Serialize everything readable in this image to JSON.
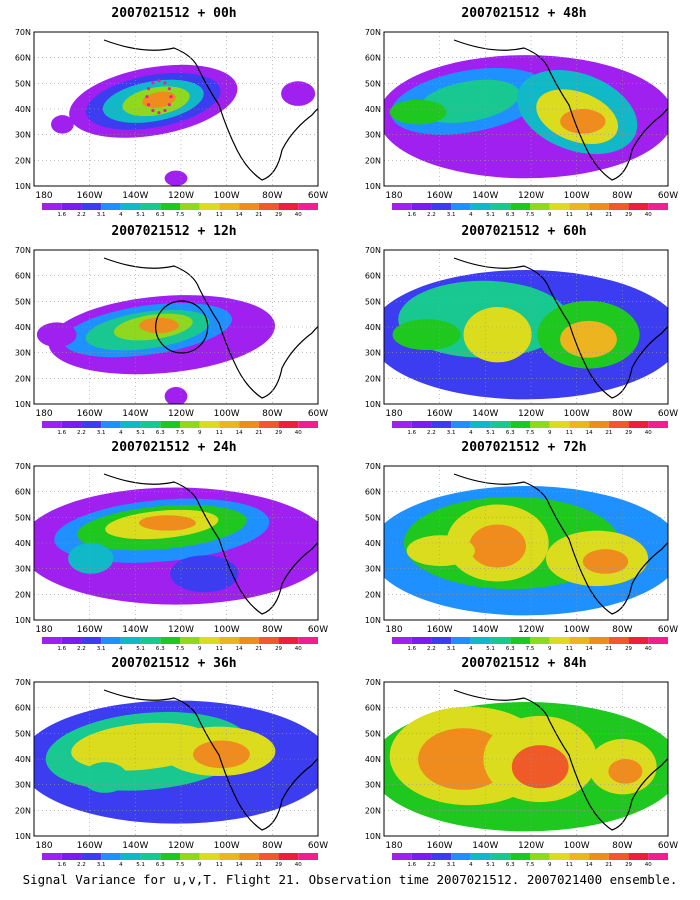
{
  "panels": [
    {
      "id": "p00",
      "title": "2007021512 + 00h",
      "marker": "dots"
    },
    {
      "id": "p48",
      "title": "2007021512 + 48h",
      "marker": ""
    },
    {
      "id": "p12",
      "title": "2007021512 + 12h",
      "marker": "circle"
    },
    {
      "id": "p60",
      "title": "2007021512 + 60h",
      "marker": ""
    },
    {
      "id": "p24",
      "title": "2007021512 + 24h",
      "marker": ""
    },
    {
      "id": "p72",
      "title": "2007021512 + 72h",
      "marker": ""
    },
    {
      "id": "p36",
      "title": "2007021512 + 36h",
      "marker": ""
    },
    {
      "id": "p84",
      "title": "2007021512 + 84h",
      "marker": ""
    }
  ],
  "lat_labels": [
    "70N",
    "60N",
    "50N",
    "40N",
    "30N",
    "20N",
    "10N"
  ],
  "lon_labels": [
    "180",
    "160W",
    "140W",
    "120W",
    "100W",
    "80W",
    "60W"
  ],
  "colorbar": {
    "labels": [
      "1.6",
      "2.2",
      "3.1",
      "4",
      "5.1",
      "6.3",
      "7.5",
      "9",
      "11",
      "14",
      "21",
      "29",
      "40"
    ],
    "colors": [
      "#a020f0",
      "#7a1cf0",
      "#3c3cf0",
      "#1e90ff",
      "#10b8c8",
      "#18c890",
      "#1ec81e",
      "#90d81e",
      "#dcdc1e",
      "#ecb41e",
      "#f08c1e",
      "#f05a28",
      "#f01e3c",
      "#f01e90"
    ]
  },
  "caption": "Signal Variance for u,v,T. Flight 21. Observation time 2007021512. 2007021400 ensemble."
}
